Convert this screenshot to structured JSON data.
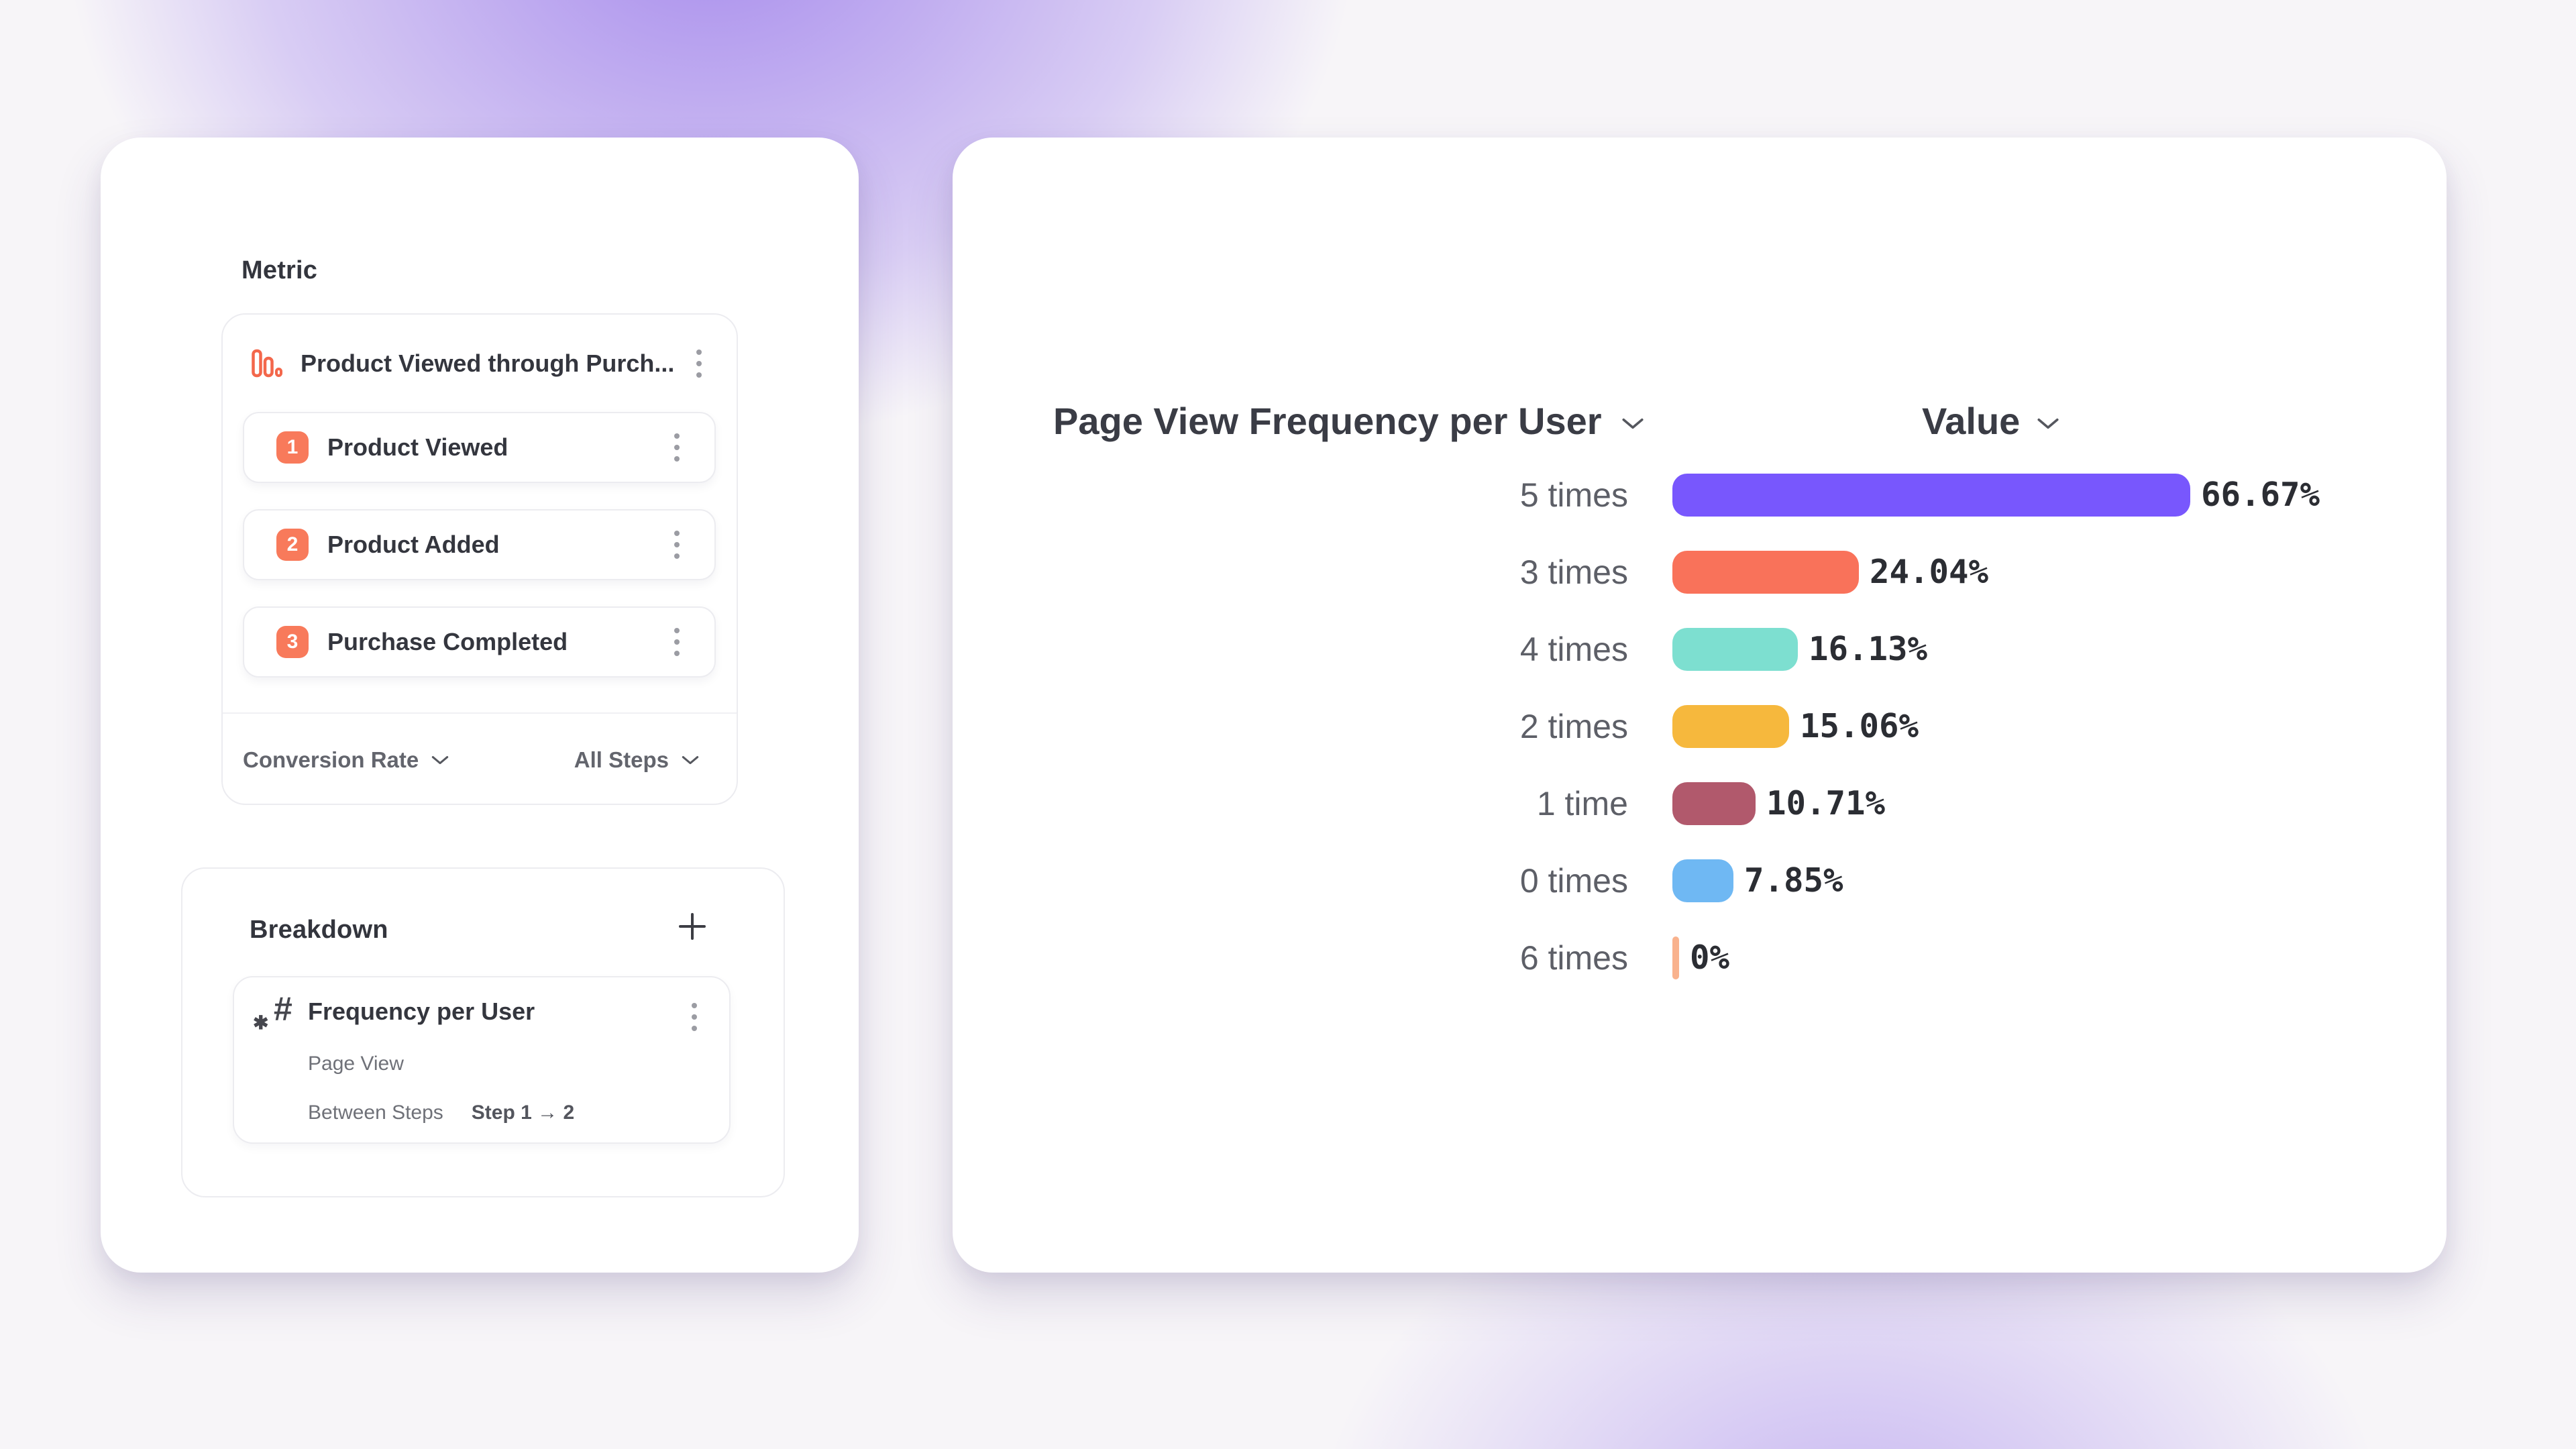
{
  "colors": {
    "badge_orange": "#F87A5B",
    "funnel_icon_orange": "#F3674B",
    "background_base": "#F7F5F8",
    "background_glow": "#8964E8",
    "card_background": "#FFFFFF"
  },
  "metric_panel": {
    "heading": "Metric",
    "funnel": {
      "title": "Product Viewed through Purch...",
      "steps": [
        {
          "number": "1",
          "label": "Product Viewed"
        },
        {
          "number": "2",
          "label": "Product Added"
        },
        {
          "number": "3",
          "label": "Purchase Completed"
        }
      ],
      "conversion_dropdown": "Conversion Rate",
      "steps_dropdown": "All Steps"
    }
  },
  "breakdown_panel": {
    "heading": "Breakdown",
    "item": {
      "title": "Frequency per User",
      "event": "Page View",
      "scope_label": "Between Steps",
      "scope_value": "Step 1 → 2"
    }
  },
  "chart_header": {
    "title": "Page View Frequency per User",
    "value_label": "Value"
  },
  "chart_data": {
    "type": "bar",
    "orientation": "horizontal",
    "title": "Page View Frequency per User",
    "categories": [
      "5 times",
      "3 times",
      "4 times",
      "2 times",
      "1 time",
      "0 times",
      "6 times"
    ],
    "values": [
      66.67,
      24.04,
      16.13,
      15.06,
      10.71,
      7.85,
      0
    ],
    "value_labels": [
      "66.67%",
      "24.04%",
      "16.13%",
      "15.06%",
      "10.71%",
      "7.85%",
      "0%"
    ],
    "bar_colors": [
      "#7857FD",
      "#F9725A",
      "#7DDFD0",
      "#F6B83D",
      "#B1596C",
      "#6FB8F3",
      "#F9B28D"
    ],
    "unit": "%",
    "xlim": [
      0,
      100
    ],
    "grid": false,
    "legend": false,
    "sorted": "descending"
  }
}
